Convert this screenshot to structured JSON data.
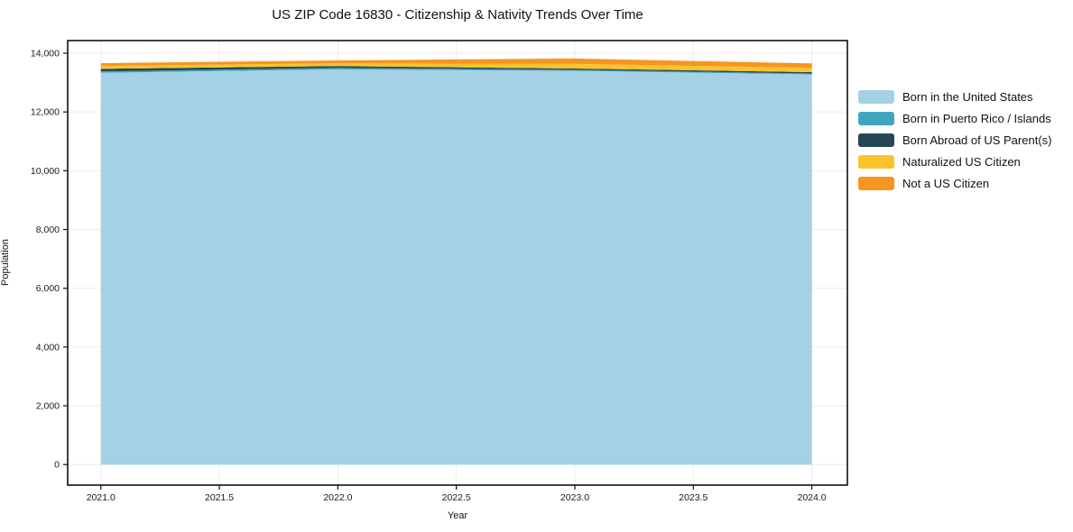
{
  "chart_data": {
    "type": "area",
    "stacked": true,
    "title": "US ZIP Code 16830 - Citizenship & Nativity Trends Over Time",
    "xlabel": "Year",
    "ylabel": "Population",
    "x": [
      2021,
      2022,
      2023,
      2024
    ],
    "series": [
      {
        "name": "Born in the United States",
        "color": "#a5d1e6",
        "values": [
          13330,
          13450,
          13400,
          13280
        ]
      },
      {
        "name": "Born in Puerto Rico / Islands",
        "color": "#3fa7bd",
        "values": [
          50,
          50,
          35,
          30
        ]
      },
      {
        "name": "Born Abroad of US Parent(s)",
        "color": "#254754",
        "values": [
          90,
          60,
          45,
          45
        ]
      },
      {
        "name": "Naturalized US Citizen",
        "color": "#fcc22d",
        "values": [
          95,
          100,
          155,
          150
        ]
      },
      {
        "name": "Not a US Citizen",
        "color": "#f6951f",
        "values": [
          95,
          95,
          185,
          150
        ]
      }
    ],
    "totals": [
      13660,
      13755,
      13820,
      13655
    ],
    "xlim": [
      2020.86,
      2024.15
    ],
    "ylim": [
      -700,
      14430
    ],
    "x_ticks": [
      {
        "v": 2021.0,
        "label": "2021.0"
      },
      {
        "v": 2021.5,
        "label": "2021.5"
      },
      {
        "v": 2022.0,
        "label": "2022.0"
      },
      {
        "v": 2022.5,
        "label": "2022.5"
      },
      {
        "v": 2023.0,
        "label": "2023.0"
      },
      {
        "v": 2023.5,
        "label": "2023.5"
      },
      {
        "v": 2024.0,
        "label": "2024.0"
      }
    ],
    "y_ticks": [
      {
        "v": 0,
        "label": "0"
      },
      {
        "v": 2000,
        "label": "2,000"
      },
      {
        "v": 4000,
        "label": "4,000"
      },
      {
        "v": 6000,
        "label": "6,000"
      },
      {
        "v": 8000,
        "label": "8,000"
      },
      {
        "v": 10000,
        "label": "10,000"
      },
      {
        "v": 12000,
        "label": "12,000"
      },
      {
        "v": 14000,
        "label": "14,000"
      }
    ],
    "grid": true,
    "legend_position": "right-outside",
    "colors": {
      "background": "#ffffff",
      "grid": "#ebebeb",
      "spine": "#111111",
      "tick_text": "#1a1a1a"
    }
  }
}
